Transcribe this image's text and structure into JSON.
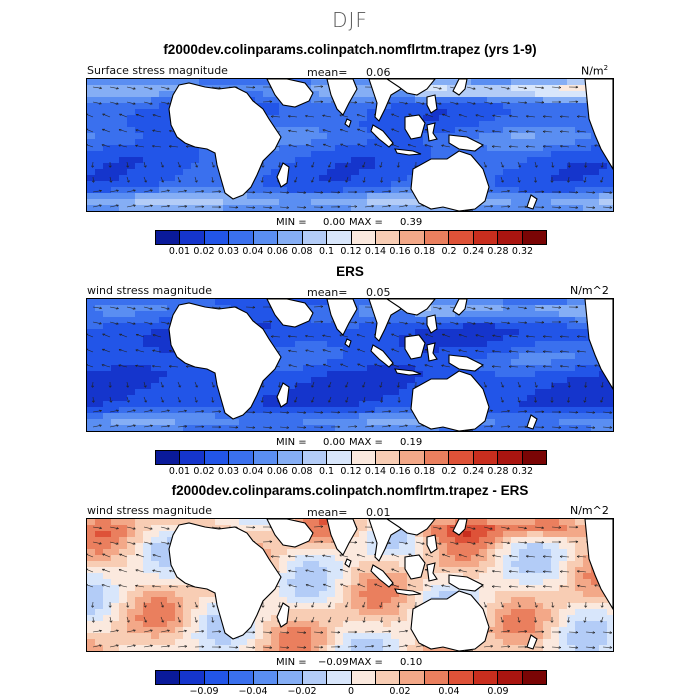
{
  "season": "DJF",
  "colors": {
    "ocean_scale": [
      "#0a1a9a",
      "#1535cc",
      "#2255e8",
      "#3a70ee",
      "#5a8ef2",
      "#85aef5",
      "#b3ccf7",
      "#d8e6fb",
      "#fbe9de",
      "#f8cdb4",
      "#f3a888",
      "#ea7f5e",
      "#de5238",
      "#c92e1e",
      "#aa1510",
      "#7a0505"
    ],
    "diff_scale": [
      "#0a1a9a",
      "#1535cc",
      "#2255e8",
      "#3a70ee",
      "#5a8ef2",
      "#85aef5",
      "#b3ccf7",
      "#d8e6fb",
      "#fbe9de",
      "#f8cdb4",
      "#f3a888",
      "#ea7f5e",
      "#de5238",
      "#c92e1e",
      "#aa1510",
      "#7a0505"
    ],
    "land": "#ffffff"
  },
  "chart_data": [
    {
      "type": "heatmap",
      "title": "f2000dev.colinparams.colinpatch.nomflrtm.trapez (yrs 1-9)",
      "subtitle_left": "Surface stress magnitude",
      "mean_label": "mean=",
      "mean_value": "0.06",
      "units_base": "N/m",
      "units_sup": "2",
      "min_label": "MIN =",
      "min_value": "0.00",
      "max_label": "MAX =",
      "max_value": "0.39",
      "colorbar_ticks": [
        "0.01",
        "0.02",
        "0.03",
        "0.04",
        "0.06",
        "0.08",
        "0.1",
        "0.12",
        "0.14",
        "0.16",
        "0.18",
        "0.2",
        "0.24",
        "0.28",
        "0.32"
      ],
      "field": "model"
    },
    {
      "type": "heatmap",
      "title": "ERS",
      "subtitle_left": "wind stress magnitude",
      "mean_label": "mean=",
      "mean_value": "0.05",
      "units": "N/m^2",
      "min_label": "MIN =",
      "min_value": "0.00",
      "max_label": "MAX =",
      "max_value": "0.19",
      "colorbar_ticks": [
        "0.01",
        "0.02",
        "0.03",
        "0.04",
        "0.06",
        "0.08",
        "0.1",
        "0.12",
        "0.14",
        "0.16",
        "0.18",
        "0.2",
        "0.24",
        "0.28",
        "0.32"
      ],
      "field": "obs"
    },
    {
      "type": "heatmap",
      "title": "f2000dev.colinparams.colinpatch.nomflrtm.trapez - ERS",
      "subtitle_left": "wind stress magnitude",
      "mean_label": "mean=",
      "mean_value": "0.01",
      "units": "N/m^2",
      "min_label": "MIN =",
      "min_value": "−0.09",
      "max_label": "MAX =",
      "max_value": "0.10",
      "colorbar_ticks": [
        "−0.09",
        "−0.04",
        "−0.02",
        "0",
        "0.02",
        "0.04",
        "0.09"
      ],
      "field": "diff"
    }
  ]
}
